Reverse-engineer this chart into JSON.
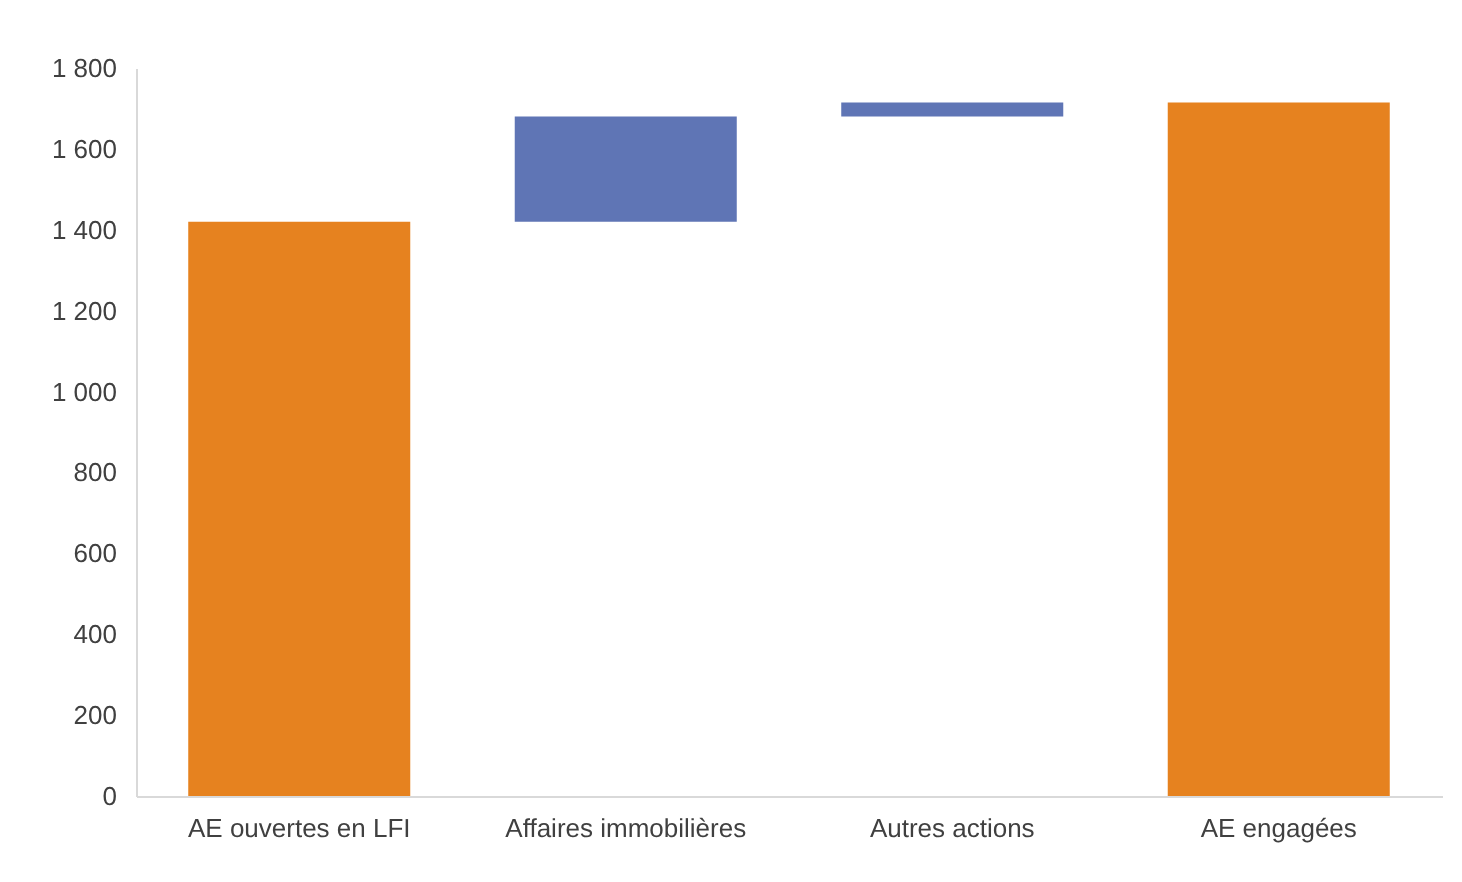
{
  "chart_data": {
    "type": "bar",
    "categories": [
      "AE ouvertes en LFI",
      "Affaires immobilières",
      "Autres actions",
      "AE engagées"
    ],
    "values": [
      1420,
      260,
      35,
      1715
    ],
    "base": [
      0,
      1420,
      1680,
      0
    ],
    "colors": [
      "#e6821f",
      "#5f75b5",
      "#5f75b5",
      "#e6821f"
    ],
    "ylim": [
      0,
      1800
    ],
    "yticks": [
      0,
      200,
      400,
      600,
      800,
      {
        "value": 1000,
        "label": "1 000"
      },
      {
        "value": 1200,
        "label": "1 200"
      },
      {
        "value": 1400,
        "label": "1 400"
      },
      {
        "value": 1600,
        "label": "1 600"
      },
      {
        "value": 1800,
        "label": "1 800"
      }
    ],
    "grid": false,
    "legend": false
  }
}
